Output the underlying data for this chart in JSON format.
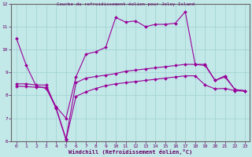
{
  "title": "Courbe du refroidissement éolien pour Jeloy Island",
  "xlabel": "Windchill (Refroidissement éolien,°C)",
  "background_color": "#c2e8e8",
  "grid_color": "#aad8d8",
  "line_color": "#990099",
  "xlim": [
    -0.5,
    23.5
  ],
  "ylim": [
    6,
    12
  ],
  "xticks": [
    0,
    1,
    2,
    3,
    4,
    5,
    6,
    7,
    8,
    9,
    10,
    11,
    12,
    13,
    14,
    15,
    16,
    17,
    18,
    19,
    20,
    21,
    22,
    23
  ],
  "yticks": [
    6,
    7,
    8,
    9,
    10,
    11,
    12
  ],
  "line1_x": [
    0,
    1,
    2,
    3,
    4,
    5,
    6,
    7,
    8,
    9,
    10,
    11,
    12,
    13,
    14,
    15,
    16,
    17,
    18,
    19,
    20,
    21,
    22,
    23
  ],
  "line1_y": [
    10.5,
    9.3,
    8.4,
    8.3,
    7.5,
    7.0,
    8.8,
    9.8,
    9.9,
    10.1,
    11.4,
    11.2,
    11.25,
    11.0,
    11.1,
    11.1,
    11.15,
    11.65,
    9.35,
    9.35,
    8.65,
    8.85,
    8.25,
    8.2
  ],
  "line2_x": [
    0,
    1,
    2,
    3,
    4,
    5,
    6,
    7,
    8,
    9,
    10,
    11,
    12,
    13,
    14,
    15,
    16,
    17,
    18,
    19,
    20,
    21,
    22,
    23
  ],
  "line2_y": [
    8.5,
    8.5,
    8.45,
    8.45,
    7.45,
    6.1,
    8.55,
    8.75,
    8.82,
    8.88,
    8.95,
    9.05,
    9.1,
    9.15,
    9.2,
    9.25,
    9.3,
    9.35,
    9.35,
    9.3,
    8.65,
    8.8,
    8.25,
    8.2
  ],
  "line3_x": [
    0,
    1,
    2,
    3,
    4,
    5,
    6,
    7,
    8,
    9,
    10,
    11,
    12,
    13,
    14,
    15,
    16,
    17,
    18,
    19,
    20,
    21,
    22,
    23
  ],
  "line3_y": [
    8.4,
    8.38,
    8.35,
    8.35,
    7.42,
    6.05,
    7.95,
    8.15,
    8.3,
    8.42,
    8.5,
    8.55,
    8.6,
    8.65,
    8.7,
    8.75,
    8.8,
    8.85,
    8.85,
    8.45,
    8.28,
    8.3,
    8.2,
    8.18
  ]
}
